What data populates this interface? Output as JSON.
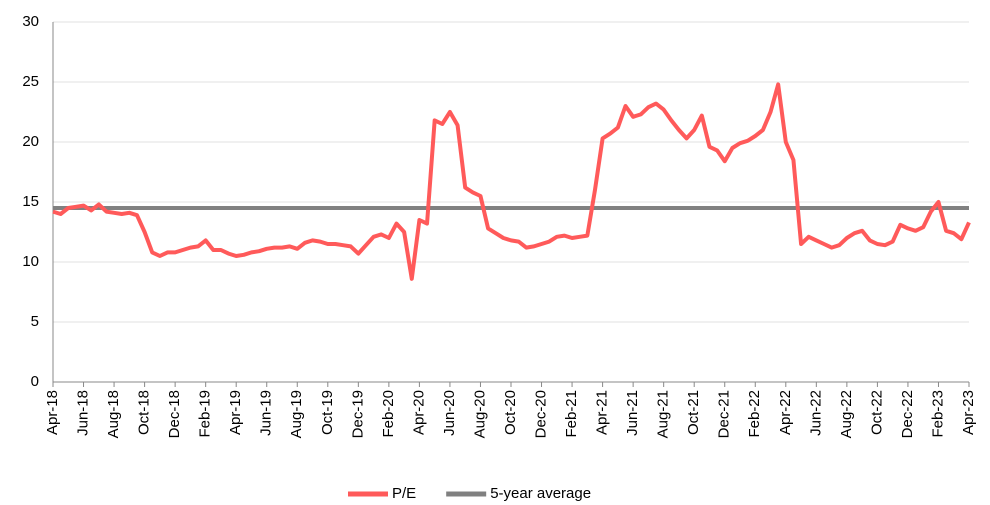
{
  "chart_data": {
    "type": "line",
    "categories": [
      "Apr-18",
      null,
      null,
      null,
      "Jun-18",
      null,
      null,
      null,
      "Aug-18",
      null,
      null,
      null,
      "Oct-18",
      null,
      null,
      null,
      "Dec-18",
      null,
      null,
      null,
      "Feb-19",
      null,
      null,
      null,
      "Apr-19",
      null,
      null,
      null,
      "Jun-19",
      null,
      null,
      null,
      "Aug-19",
      null,
      null,
      null,
      "Oct-19",
      null,
      null,
      null,
      "Dec-19",
      null,
      null,
      null,
      "Feb-20",
      null,
      null,
      null,
      "Apr-20",
      null,
      null,
      null,
      "Jun-20",
      null,
      null,
      null,
      "Aug-20",
      null,
      null,
      null,
      "Oct-20",
      null,
      null,
      null,
      "Dec-20",
      null,
      null,
      null,
      "Feb-21",
      null,
      null,
      null,
      "Apr-21",
      null,
      null,
      null,
      "Jun-21",
      null,
      null,
      null,
      "Aug-21",
      null,
      null,
      null,
      "Oct-21",
      null,
      null,
      null,
      "Dec-21",
      null,
      null,
      null,
      "Feb-22",
      null,
      null,
      null,
      "Apr-22",
      null,
      null,
      null,
      "Jun-22",
      null,
      null,
      null,
      "Aug-22",
      null,
      null,
      null,
      "Oct-22",
      null,
      null,
      null,
      "Dec-22",
      null,
      null,
      null,
      "Feb-23",
      null,
      null,
      null,
      "Apr-23"
    ],
    "series": [
      {
        "name": "P/E",
        "color": "#ff5a5a",
        "width": 4,
        "values": [
          14.2,
          14.0,
          14.5,
          14.6,
          14.7,
          14.3,
          14.8,
          14.2,
          14.1,
          14.0,
          14.1,
          13.9,
          12.5,
          10.8,
          10.5,
          10.8,
          10.8,
          11.0,
          11.2,
          11.3,
          11.8,
          11.0,
          11.0,
          10.7,
          10.5,
          10.6,
          10.8,
          10.9,
          11.1,
          11.2,
          11.2,
          11.3,
          11.1,
          11.6,
          11.8,
          11.7,
          11.5,
          11.5,
          11.4,
          11.3,
          10.7,
          11.4,
          12.1,
          12.3,
          12.0,
          13.2,
          12.5,
          8.6,
          13.5,
          13.2,
          21.8,
          21.5,
          22.5,
          21.4,
          16.2,
          15.8,
          15.5,
          12.8,
          12.4,
          12.0,
          11.8,
          11.7,
          11.2,
          11.3,
          11.5,
          11.7,
          12.1,
          12.2,
          12.0,
          12.1,
          12.2,
          16.0,
          20.3,
          20.7,
          21.2,
          23.0,
          22.1,
          22.3,
          22.9,
          23.2,
          22.7,
          21.8,
          21.0,
          20.3,
          21.0,
          22.2,
          19.6,
          19.3,
          18.4,
          19.5,
          19.9,
          20.1,
          20.5,
          21.0,
          22.5,
          24.8,
          20.0,
          18.5,
          11.5,
          12.1,
          11.8,
          11.5,
          11.2,
          11.4,
          12.0,
          12.4,
          12.6,
          11.8,
          11.5,
          11.4,
          11.7,
          13.1,
          12.8,
          12.6,
          12.9,
          14.2,
          15.0,
          12.6,
          12.4,
          11.9,
          13.3
        ]
      },
      {
        "name": "5-year average",
        "color": "#808080",
        "width": 4,
        "values": [
          14.5,
          14.5,
          14.5,
          14.5,
          14.5,
          14.5,
          14.5,
          14.5,
          14.5,
          14.5,
          14.5,
          14.5,
          14.5,
          14.5,
          14.5,
          14.5,
          14.5,
          14.5,
          14.5,
          14.5,
          14.5,
          14.5,
          14.5,
          14.5,
          14.5,
          14.5,
          14.5,
          14.5,
          14.5,
          14.5,
          14.5,
          14.5,
          14.5,
          14.5,
          14.5,
          14.5,
          14.5,
          14.5,
          14.5,
          14.5,
          14.5,
          14.5,
          14.5,
          14.5,
          14.5,
          14.5,
          14.5,
          14.5,
          14.5,
          14.5,
          14.5,
          14.5,
          14.5,
          14.5,
          14.5,
          14.5,
          14.5,
          14.5,
          14.5,
          14.5,
          14.5,
          14.5,
          14.5,
          14.5,
          14.5,
          14.5,
          14.5,
          14.5,
          14.5,
          14.5,
          14.5,
          14.5,
          14.5,
          14.5,
          14.5,
          14.5,
          14.5,
          14.5,
          14.5,
          14.5,
          14.5,
          14.5,
          14.5,
          14.5,
          14.5,
          14.5,
          14.5,
          14.5,
          14.5,
          14.5,
          14.5,
          14.5,
          14.5,
          14.5,
          14.5,
          14.5,
          14.5,
          14.5,
          14.5,
          14.5,
          14.5,
          14.5,
          14.5,
          14.5,
          14.5,
          14.5,
          14.5,
          14.5,
          14.5,
          14.5,
          14.5,
          14.5,
          14.5,
          14.5,
          14.5,
          14.5,
          14.5,
          14.5,
          14.5,
          14.5,
          14.5
        ]
      }
    ],
    "ylim": [
      0,
      30
    ],
    "yticks": [
      0,
      5,
      10,
      15,
      20,
      25,
      30
    ],
    "grid": true,
    "legend": "bottom"
  }
}
